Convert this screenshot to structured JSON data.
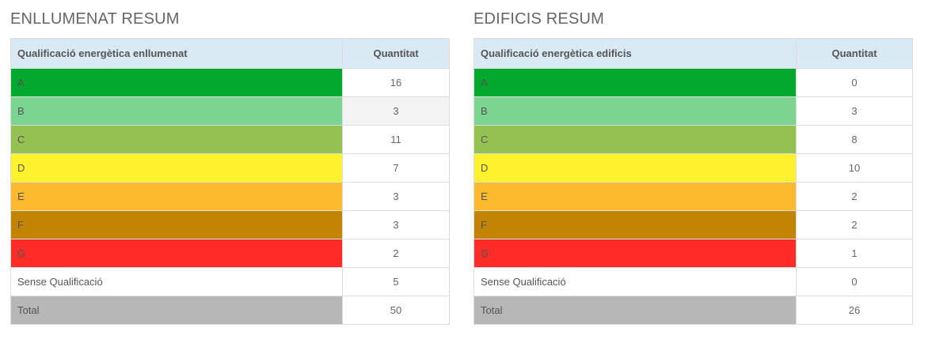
{
  "lighting": {
    "title": "ENLLUMENAT RESUM",
    "col_rating": "Qualificació energètica enllumenat",
    "col_qty": "Quantitat",
    "rows": [
      {
        "label": "A",
        "qty": "16"
      },
      {
        "label": "B",
        "qty": "3"
      },
      {
        "label": "C",
        "qty": "11"
      },
      {
        "label": "D",
        "qty": "7"
      },
      {
        "label": "E",
        "qty": "3"
      },
      {
        "label": "F",
        "qty": "3"
      },
      {
        "label": "G",
        "qty": "2"
      },
      {
        "label": "Sense Qualificació",
        "qty": "5"
      },
      {
        "label": "Total",
        "qty": "50"
      }
    ]
  },
  "buildings": {
    "title": "EDIFICIS RESUM",
    "col_rating": "Qualificació energètica edificis",
    "col_qty": "Quantitat",
    "rows": [
      {
        "label": "A",
        "qty": "0"
      },
      {
        "label": "B",
        "qty": "3"
      },
      {
        "label": "C",
        "qty": "8"
      },
      {
        "label": "D",
        "qty": "10"
      },
      {
        "label": "E",
        "qty": "2"
      },
      {
        "label": "F",
        "qty": "2"
      },
      {
        "label": "G",
        "qty": "1"
      },
      {
        "label": "Sense Qualificació",
        "qty": "0"
      },
      {
        "label": "Total",
        "qty": "26"
      }
    ]
  },
  "grade_colors": {
    "A": "#00a82d",
    "B": "#7bd48f",
    "C": "#93c152",
    "D": "#fff22d",
    "E": "#feba2f",
    "F": "#c48403",
    "G": "#ff2c27",
    "Sense Qualificació": "#ffffff",
    "Total": "#b7b7b7"
  }
}
